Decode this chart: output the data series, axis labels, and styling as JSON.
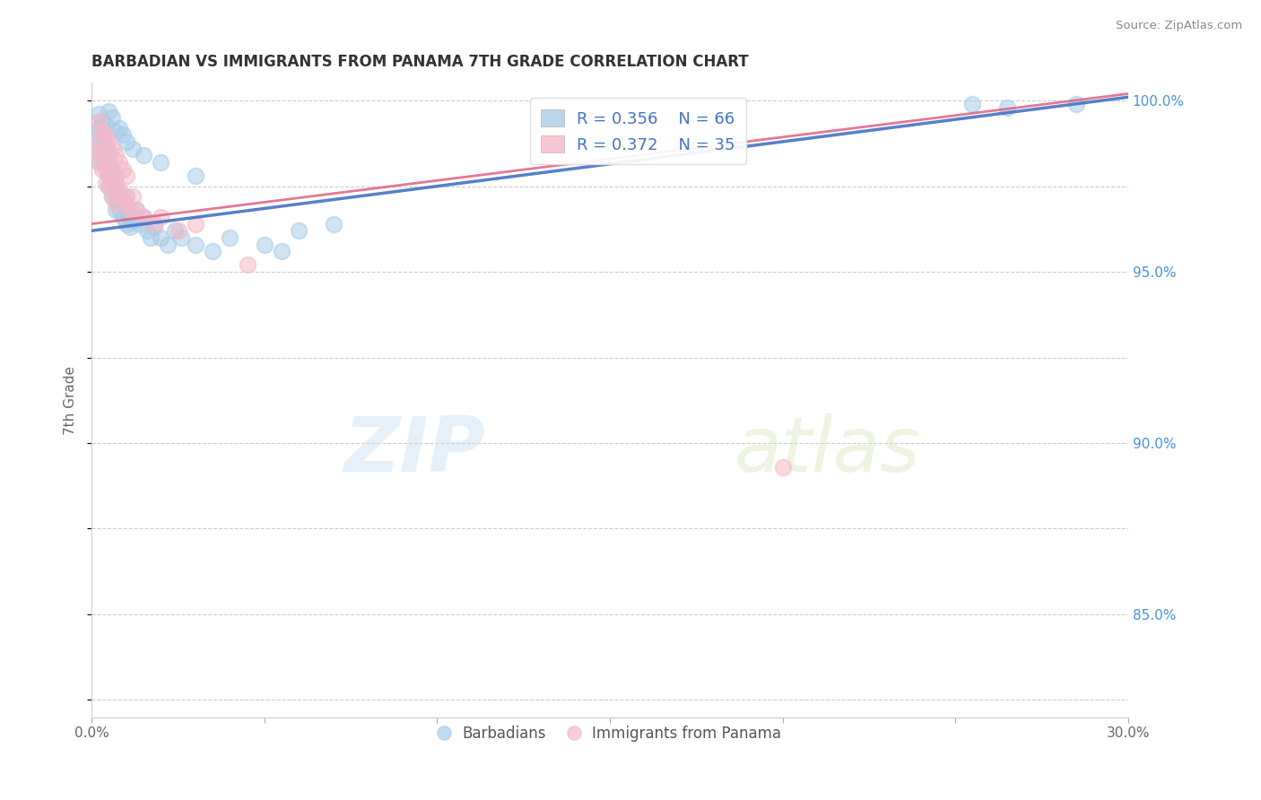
{
  "title": "BARBADIAN VS IMMIGRANTS FROM PANAMA 7TH GRADE CORRELATION CHART",
  "source_text": "Source: ZipAtlas.com",
  "ylabel": "7th Grade",
  "watermark_zip": "ZIP",
  "watermark_atlas": "atlas",
  "xlim": [
    0.0,
    0.3
  ],
  "ylim": [
    0.82,
    1.005
  ],
  "yticks_right": [
    0.85,
    0.9,
    0.95,
    1.0
  ],
  "ytick_labels_right": [
    "85.0%",
    "90.0%",
    "95.0%",
    "100.0%"
  ],
  "legend_R_blue": "R = 0.356",
  "legend_N_blue": "N = 66",
  "legend_R_pink": "R = 0.372",
  "legend_N_pink": "N = 35",
  "blue_color": "#a8cce8",
  "pink_color": "#f5b8c8",
  "blue_line_color": "#4472c4",
  "pink_line_color": "#e06080",
  "legend_text_color": "#4472c4",
  "blue_x": [
    0.001,
    0.001,
    0.002,
    0.002,
    0.002,
    0.003,
    0.003,
    0.003,
    0.003,
    0.004,
    0.004,
    0.004,
    0.005,
    0.005,
    0.005,
    0.005,
    0.006,
    0.006,
    0.006,
    0.007,
    0.007,
    0.007,
    0.007,
    0.008,
    0.008,
    0.009,
    0.009,
    0.01,
    0.01,
    0.01,
    0.011,
    0.011,
    0.012,
    0.013,
    0.014,
    0.015,
    0.016,
    0.017,
    0.018,
    0.02,
    0.022,
    0.024,
    0.026,
    0.03,
    0.035,
    0.04,
    0.05,
    0.055,
    0.06,
    0.07,
    0.002,
    0.003,
    0.004,
    0.005,
    0.006,
    0.007,
    0.008,
    0.009,
    0.01,
    0.012,
    0.015,
    0.02,
    0.03,
    0.255,
    0.265,
    0.285
  ],
  "blue_y": [
    0.983,
    0.99,
    0.988,
    0.985,
    0.992,
    0.985,
    0.982,
    0.988,
    0.992,
    0.984,
    0.98,
    0.987,
    0.978,
    0.982,
    0.985,
    0.975,
    0.976,
    0.98,
    0.972,
    0.974,
    0.978,
    0.971,
    0.968,
    0.972,
    0.968,
    0.97,
    0.966,
    0.968,
    0.964,
    0.972,
    0.966,
    0.963,
    0.965,
    0.968,
    0.964,
    0.966,
    0.962,
    0.96,
    0.963,
    0.96,
    0.958,
    0.962,
    0.96,
    0.958,
    0.956,
    0.96,
    0.958,
    0.956,
    0.962,
    0.964,
    0.996,
    0.994,
    0.993,
    0.997,
    0.995,
    0.991,
    0.992,
    0.99,
    0.988,
    0.986,
    0.984,
    0.982,
    0.978,
    0.999,
    0.998,
    0.999
  ],
  "pink_x": [
    0.001,
    0.002,
    0.002,
    0.003,
    0.003,
    0.004,
    0.004,
    0.005,
    0.005,
    0.006,
    0.006,
    0.007,
    0.007,
    0.008,
    0.009,
    0.01,
    0.011,
    0.012,
    0.013,
    0.015,
    0.018,
    0.02,
    0.025,
    0.03,
    0.002,
    0.003,
    0.004,
    0.005,
    0.006,
    0.007,
    0.008,
    0.009,
    0.01,
    0.045,
    0.2
  ],
  "pink_y": [
    0.985,
    0.988,
    0.982,
    0.985,
    0.98,
    0.982,
    0.976,
    0.98,
    0.975,
    0.978,
    0.972,
    0.976,
    0.97,
    0.974,
    0.972,
    0.97,
    0.968,
    0.972,
    0.968,
    0.966,
    0.964,
    0.966,
    0.962,
    0.964,
    0.994,
    0.991,
    0.99,
    0.988,
    0.986,
    0.984,
    0.982,
    0.98,
    0.978,
    0.952,
    0.893
  ],
  "blue_trend_x": [
    0.0,
    0.3
  ],
  "blue_trend_y": [
    0.962,
    1.001
  ],
  "pink_trend_x": [
    0.0,
    0.3
  ],
  "pink_trend_y": [
    0.964,
    1.002
  ]
}
